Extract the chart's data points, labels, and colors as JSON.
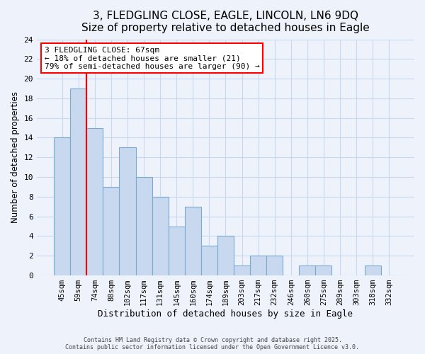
{
  "title": "3, FLEDGLING CLOSE, EAGLE, LINCOLN, LN6 9DQ",
  "subtitle": "Size of property relative to detached houses in Eagle",
  "xlabel": "Distribution of detached houses by size in Eagle",
  "ylabel": "Number of detached properties",
  "bar_labels": [
    "45sqm",
    "59sqm",
    "74sqm",
    "88sqm",
    "102sqm",
    "117sqm",
    "131sqm",
    "145sqm",
    "160sqm",
    "174sqm",
    "189sqm",
    "203sqm",
    "217sqm",
    "232sqm",
    "246sqm",
    "260sqm",
    "275sqm",
    "289sqm",
    "303sqm",
    "318sqm",
    "332sqm"
  ],
  "bar_values": [
    14,
    19,
    15,
    9,
    13,
    10,
    8,
    5,
    7,
    3,
    4,
    1,
    2,
    2,
    0,
    1,
    1,
    0,
    0,
    1,
    0
  ],
  "bar_color": "#c8d8ee",
  "bar_edge_color": "#7aaad0",
  "grid_color": "#c8d8ee",
  "background_color": "#eef2fb",
  "vline_x": 1.5,
  "vline_color": "red",
  "annotation_text": "3 FLEDGLING CLOSE: 67sqm\n← 18% of detached houses are smaller (21)\n79% of semi-detached houses are larger (90) →",
  "annotation_box_color": "white",
  "annotation_box_edge": "red",
  "ylim": [
    0,
    24
  ],
  "yticks": [
    0,
    2,
    4,
    6,
    8,
    10,
    12,
    14,
    16,
    18,
    20,
    22,
    24
  ],
  "footer": "Contains HM Land Registry data © Crown copyright and database right 2025.\nContains public sector information licensed under the Open Government Licence v3.0.",
  "title_fontsize": 11,
  "subtitle_fontsize": 9.5,
  "tick_fontfamily": "monospace"
}
